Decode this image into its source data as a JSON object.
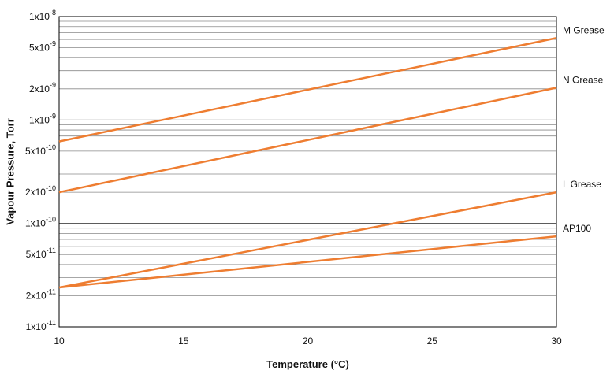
{
  "chart_data": {
    "type": "line",
    "xlabel": "Temperature (°C)",
    "ylabel": "Vapour Pressure, Torr",
    "xlim": [
      10,
      30
    ],
    "ylim": [
      1e-11,
      1e-08
    ],
    "y_scale": "log",
    "grid": "horizontal",
    "legend": "inline labels at right end",
    "x_ticks": [
      10,
      15,
      20,
      25,
      30
    ],
    "y_ticks": [
      {
        "value": 1e-08,
        "mantissa": "1x10",
        "exp": "-8"
      },
      {
        "value": 5e-09,
        "mantissa": "5x10",
        "exp": "-9"
      },
      {
        "value": 2e-09,
        "mantissa": "2x10",
        "exp": "-9"
      },
      {
        "value": 1e-09,
        "mantissa": "1x10",
        "exp": "-9"
      },
      {
        "value": 5e-10,
        "mantissa": "5x10",
        "exp": "-10"
      },
      {
        "value": 2e-10,
        "mantissa": "2x10",
        "exp": "-10"
      },
      {
        "value": 1e-10,
        "mantissa": "1x10",
        "exp": "-10"
      },
      {
        "value": 5e-11,
        "mantissa": "5x10",
        "exp": "-11"
      },
      {
        "value": 2e-11,
        "mantissa": "2x10",
        "exp": "-11"
      },
      {
        "value": 1e-11,
        "mantissa": "1x10",
        "exp": "-11"
      }
    ],
    "series": [
      {
        "name": "M Grease",
        "color": "#ee7d31",
        "x": [
          10,
          30
        ],
        "y": [
          6.2e-10,
          6.2e-09
        ]
      },
      {
        "name": "N Grease",
        "color": "#ee7d31",
        "x": [
          10,
          30
        ],
        "y": [
          2e-10,
          2.05e-09
        ]
      },
      {
        "name": "L Grease",
        "color": "#ee7d31",
        "x": [
          10,
          30
        ],
        "y": [
          2.4e-11,
          2e-10
        ]
      },
      {
        "name": "AP100",
        "color": "#ee7d31",
        "x": [
          10,
          30
        ],
        "y": [
          2.4e-11,
          7.5e-11
        ]
      }
    ]
  }
}
